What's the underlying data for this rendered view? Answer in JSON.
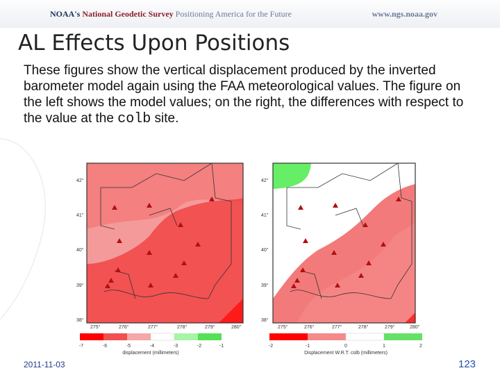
{
  "header": {
    "noaa": "NOAA's",
    "ngs": "National Geodetic Survey",
    "tagline": "Positioning America for the Future",
    "url": "www.ngs.noaa.gov"
  },
  "slide": {
    "title": "AL Effects Upon Positions",
    "text_before": "These figures show the vertical displacement produced by the inverted barometer model again using the FAA meteorological values. The figure on the left shows the model values; on the right, the differences with respect to the value at the ",
    "site_code": "colb",
    "text_after": " site.",
    "date": "2011-11-03",
    "page_number": "123"
  },
  "maps": {
    "lat_labels": [
      "42°",
      "41°",
      "40°",
      "39°",
      "38°"
    ],
    "lon_labels": [
      "275°",
      "276°",
      "277°",
      "278°",
      "279°",
      "280°"
    ],
    "left": {
      "scale_ticks": [
        "-7",
        "-6",
        "-5",
        "-4",
        "-3",
        "-2",
        "-1"
      ],
      "scale_colors": [
        "#ff0000",
        "#f05050",
        "#f4a8a8",
        "#ffffff",
        "#a8f4a8",
        "#55e055"
      ],
      "caption": "displacement (millimeters)"
    },
    "right": {
      "scale_ticks": [
        "-2",
        "-1",
        "0",
        "1",
        "2"
      ],
      "scale_colors": [
        "#ff0000",
        "#f48a8a",
        "#ffffff",
        "#66e066"
      ],
      "caption": "Displacement W.R.T. colb (millimeters)"
    },
    "colors": {
      "deep_red": "#f03a3a",
      "mid_red": "#f26c6c",
      "light_red": "#f59a9a",
      "white": "#ffffff",
      "green": "#66ee66",
      "site": "#b01010"
    }
  }
}
